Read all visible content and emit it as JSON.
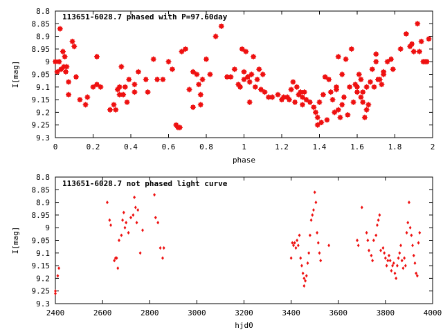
{
  "marker_color": "#ee1111",
  "chart_data": [
    {
      "type": "scatter",
      "title": "113651-6028.7 phased with P=97.60day",
      "xlabel": "phase",
      "ylabel": "I[mag]",
      "xlim": [
        0,
        2
      ],
      "ylim": [
        9.3,
        8.8
      ],
      "y_inverted": true,
      "xticks": [
        "0",
        "0.2",
        "0.4",
        "0.6",
        "0.8",
        "1",
        "1.2",
        "1.4",
        "1.6",
        "1.8",
        "2"
      ],
      "yticks": [
        "8.8",
        "8.85",
        "8.9",
        "8.95",
        "9",
        "9.05",
        "9.1",
        "9.15",
        "9.2",
        "9.25",
        "9.3"
      ],
      "grid": false,
      "points": [
        [
          0.0,
          9.0
        ],
        [
          0.01,
          9.04
        ],
        [
          0.02,
          9.0
        ],
        [
          0.025,
          8.87
        ],
        [
          0.03,
          9.03
        ],
        [
          0.04,
          8.96
        ],
        [
          0.045,
          9.02
        ],
        [
          0.05,
          8.98
        ],
        [
          0.055,
          9.04
        ],
        [
          0.06,
          9.02
        ],
        [
          0.07,
          9.13
        ],
        [
          0.07,
          9.08
        ],
        [
          0.09,
          8.92
        ],
        [
          0.1,
          8.94
        ],
        [
          0.11,
          9.06
        ],
        [
          0.13,
          9.15
        ],
        [
          0.16,
          9.17
        ],
        [
          0.17,
          9.14
        ],
        [
          0.2,
          9.1
        ],
        [
          0.22,
          8.98
        ],
        [
          0.22,
          9.09
        ],
        [
          0.24,
          9.1
        ],
        [
          0.29,
          9.19
        ],
        [
          0.31,
          9.17
        ],
        [
          0.32,
          9.19
        ],
        [
          0.33,
          9.11
        ],
        [
          0.34,
          9.13
        ],
        [
          0.34,
          9.1
        ],
        [
          0.35,
          9.02
        ],
        [
          0.36,
          9.13
        ],
        [
          0.37,
          9.1
        ],
        [
          0.38,
          9.16
        ],
        [
          0.39,
          9.07
        ],
        [
          0.42,
          9.09
        ],
        [
          0.42,
          9.12
        ],
        [
          0.44,
          9.04
        ],
        [
          0.48,
          9.07
        ],
        [
          0.49,
          9.12
        ],
        [
          0.52,
          8.99
        ],
        [
          0.54,
          9.07
        ],
        [
          0.57,
          9.07
        ],
        [
          0.6,
          9.0
        ],
        [
          0.62,
          9.03
        ],
        [
          0.64,
          9.25
        ],
        [
          0.65,
          9.26
        ],
        [
          0.66,
          9.26
        ],
        [
          0.67,
          8.96
        ],
        [
          0.69,
          8.95
        ],
        [
          0.71,
          9.11
        ],
        [
          0.73,
          9.04
        ],
        [
          0.73,
          9.18
        ],
        [
          0.75,
          9.05
        ],
        [
          0.76,
          9.09
        ],
        [
          0.77,
          9.13
        ],
        [
          0.77,
          9.17
        ],
        [
          0.78,
          9.07
        ],
        [
          0.8,
          8.99
        ],
        [
          0.82,
          9.05
        ],
        [
          0.85,
          8.9
        ],
        [
          0.88,
          8.86
        ],
        [
          0.91,
          9.06
        ],
        [
          0.93,
          9.06
        ],
        [
          0.95,
          9.03
        ],
        [
          0.97,
          9.09
        ],
        [
          0.98,
          9.1
        ],
        [
          0.99,
          8.95
        ],
        [
          1.0,
          9.07
        ],
        [
          1.0,
          9.04
        ],
        [
          1.01,
          8.96
        ],
        [
          1.02,
          9.06
        ],
        [
          1.03,
          9.08
        ],
        [
          1.03,
          9.16
        ],
        [
          1.04,
          9.05
        ],
        [
          1.05,
          8.98
        ],
        [
          1.06,
          9.1
        ],
        [
          1.07,
          9.07
        ],
        [
          1.08,
          9.03
        ],
        [
          1.09,
          9.11
        ],
        [
          1.1,
          9.05
        ],
        [
          1.11,
          9.12
        ],
        [
          1.13,
          9.14
        ],
        [
          1.15,
          9.14
        ],
        [
          1.18,
          9.13
        ],
        [
          1.2,
          9.15
        ],
        [
          1.21,
          9.14
        ],
        [
          1.23,
          9.14
        ],
        [
          1.24,
          9.15
        ],
        [
          1.25,
          9.11
        ],
        [
          1.26,
          9.08
        ],
        [
          1.27,
          9.16
        ],
        [
          1.28,
          9.1
        ],
        [
          1.29,
          9.13
        ],
        [
          1.3,
          9.12
        ],
        [
          1.31,
          9.14
        ],
        [
          1.31,
          9.17
        ],
        [
          1.32,
          9.12
        ],
        [
          1.33,
          9.15
        ],
        [
          1.35,
          9.16
        ],
        [
          1.37,
          9.18
        ],
        [
          1.38,
          9.2
        ],
        [
          1.39,
          9.22
        ],
        [
          1.39,
          9.25
        ],
        [
          1.4,
          9.16
        ],
        [
          1.41,
          9.24
        ],
        [
          1.42,
          9.13
        ],
        [
          1.43,
          9.06
        ],
        [
          1.44,
          9.23
        ],
        [
          1.45,
          9.07
        ],
        [
          1.46,
          9.12
        ],
        [
          1.47,
          9.15
        ],
        [
          1.48,
          9.2
        ],
        [
          1.49,
          9.11
        ],
        [
          1.49,
          9.1
        ],
        [
          1.5,
          8.98
        ],
        [
          1.5,
          9.19
        ],
        [
          1.51,
          9.22
        ],
        [
          1.52,
          9.05
        ],
        [
          1.52,
          9.17
        ],
        [
          1.53,
          9.14
        ],
        [
          1.54,
          8.99
        ],
        [
          1.55,
          9.21
        ],
        [
          1.56,
          9.1
        ],
        [
          1.57,
          8.95
        ],
        [
          1.58,
          9.16
        ],
        [
          1.59,
          9.09
        ],
        [
          1.6,
          9.1
        ],
        [
          1.6,
          9.12
        ],
        [
          1.61,
          9.05
        ],
        [
          1.62,
          9.07
        ],
        [
          1.62,
          9.14
        ],
        [
          1.63,
          9.12
        ],
        [
          1.63,
          9.16
        ],
        [
          1.64,
          9.22
        ],
        [
          1.65,
          9.1
        ],
        [
          1.65,
          9.19
        ],
        [
          1.66,
          9.17
        ],
        [
          1.67,
          9.08
        ],
        [
          1.68,
          9.03
        ],
        [
          1.69,
          9.1
        ],
        [
          1.7,
          9.0
        ],
        [
          1.7,
          8.97
        ],
        [
          1.71,
          9.07
        ],
        [
          1.72,
          9.07
        ],
        [
          1.73,
          9.09
        ],
        [
          1.74,
          9.05
        ],
        [
          1.74,
          9.04
        ],
        [
          1.76,
          9.0
        ],
        [
          1.78,
          8.99
        ],
        [
          1.79,
          9.03
        ],
        [
          1.83,
          8.95
        ],
        [
          1.86,
          8.89
        ],
        [
          1.88,
          8.94
        ],
        [
          1.89,
          8.93
        ],
        [
          1.9,
          8.96
        ],
        [
          1.92,
          8.85
        ],
        [
          1.93,
          8.96
        ],
        [
          1.94,
          8.92
        ],
        [
          1.95,
          9.0
        ],
        [
          1.96,
          9.0
        ],
        [
          1.97,
          9.0
        ],
        [
          1.98,
          8.91
        ]
      ]
    },
    {
      "type": "scatter",
      "title": "113651-6028.7 not phased light curve",
      "xlabel": "hjd0",
      "ylabel": "I[mag]",
      "xlim": [
        2400,
        4000
      ],
      "ylim": [
        9.3,
        8.8
      ],
      "y_inverted": true,
      "xticks": [
        "2400",
        "2600",
        "2800",
        "3000",
        "3200",
        "3400",
        "3600",
        "3800",
        "4000"
      ],
      "yticks": [
        "8.8",
        "8.85",
        "8.9",
        "8.95",
        "9",
        "9.05",
        "9.1",
        "9.15",
        "9.2",
        "9.25",
        "9.3"
      ],
      "grid": false,
      "points": [
        [
          2400,
          9.26
        ],
        [
          2400,
          9.25
        ],
        [
          2410,
          9.19
        ],
        [
          2415,
          9.16
        ],
        [
          2620,
          8.9
        ],
        [
          2630,
          8.97
        ],
        [
          2635,
          8.99
        ],
        [
          2650,
          9.13
        ],
        [
          2655,
          9.12
        ],
        [
          2660,
          9.12
        ],
        [
          2665,
          9.16
        ],
        [
          2670,
          9.05
        ],
        [
          2680,
          9.03
        ],
        [
          2685,
          8.97
        ],
        [
          2690,
          8.94
        ],
        [
          2695,
          9.0
        ],
        [
          2700,
          8.98
        ],
        [
          2710,
          9.02
        ],
        [
          2720,
          8.96
        ],
        [
          2730,
          8.95
        ],
        [
          2735,
          8.88
        ],
        [
          2740,
          8.92
        ],
        [
          2745,
          8.98
        ],
        [
          2750,
          8.93
        ],
        [
          2760,
          9.1
        ],
        [
          2770,
          9.01
        ],
        [
          2820,
          8.87
        ],
        [
          2825,
          8.96
        ],
        [
          2835,
          8.98
        ],
        [
          2845,
          9.08
        ],
        [
          2855,
          9.12
        ],
        [
          2860,
          9.08
        ],
        [
          3400,
          9.12
        ],
        [
          3405,
          9.06
        ],
        [
          3410,
          9.07
        ],
        [
          3415,
          9.06
        ],
        [
          3420,
          9.08
        ],
        [
          3425,
          9.05
        ],
        [
          3430,
          9.07
        ],
        [
          3435,
          9.03
        ],
        [
          3440,
          9.12
        ],
        [
          3445,
          9.15
        ],
        [
          3450,
          9.18
        ],
        [
          3455,
          9.2
        ],
        [
          3455,
          9.23
        ],
        [
          3460,
          9.21
        ],
        [
          3465,
          9.19
        ],
        [
          3470,
          9.14
        ],
        [
          3475,
          9.1
        ],
        [
          3480,
          9.03
        ],
        [
          3485,
          8.97
        ],
        [
          3490,
          8.95
        ],
        [
          3495,
          8.93
        ],
        [
          3500,
          8.86
        ],
        [
          3505,
          8.9
        ],
        [
          3510,
          9.02
        ],
        [
          3515,
          9.06
        ],
        [
          3520,
          9.1
        ],
        [
          3525,
          9.13
        ],
        [
          3560,
          9.07
        ],
        [
          3680,
          9.05
        ],
        [
          3685,
          9.07
        ],
        [
          3700,
          8.92
        ],
        [
          3720,
          9.02
        ],
        [
          3725,
          9.05
        ],
        [
          3730,
          9.09
        ],
        [
          3740,
          9.11
        ],
        [
          3745,
          9.13
        ],
        [
          3750,
          9.05
        ],
        [
          3760,
          9.03
        ],
        [
          3765,
          8.99
        ],
        [
          3770,
          8.97
        ],
        [
          3775,
          8.95
        ],
        [
          3780,
          9.09
        ],
        [
          3790,
          9.08
        ],
        [
          3795,
          9.1
        ],
        [
          3800,
          9.12
        ],
        [
          3805,
          9.15
        ],
        [
          3810,
          9.13
        ],
        [
          3815,
          9.11
        ],
        [
          3820,
          9.13
        ],
        [
          3825,
          9.17
        ],
        [
          3830,
          9.15
        ],
        [
          3835,
          9.14
        ],
        [
          3840,
          9.18
        ],
        [
          3845,
          9.2
        ],
        [
          3850,
          9.15
        ],
        [
          3855,
          9.12
        ],
        [
          3860,
          9.1
        ],
        [
          3865,
          9.07
        ],
        [
          3870,
          9.13
        ],
        [
          3875,
          9.16
        ],
        [
          3880,
          9.12
        ],
        [
          3885,
          9.15
        ],
        [
          3890,
          9.02
        ],
        [
          3895,
          8.98
        ],
        [
          3900,
          8.9
        ],
        [
          3905,
          9.0
        ],
        [
          3910,
          9.03
        ],
        [
          3915,
          9.07
        ],
        [
          3920,
          9.11
        ],
        [
          3925,
          9.14
        ],
        [
          3930,
          9.18
        ],
        [
          3935,
          9.19
        ],
        [
          3940,
          9.06
        ],
        [
          3945,
          9.02
        ]
      ]
    }
  ]
}
